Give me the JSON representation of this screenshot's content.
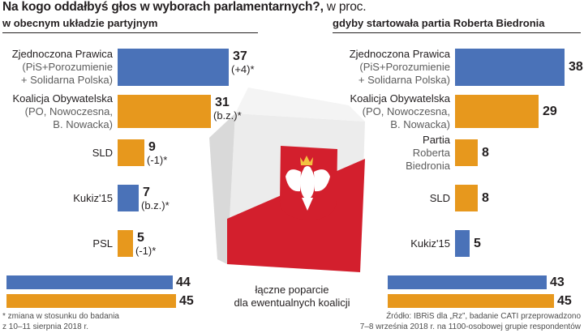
{
  "header": {
    "title": "Na kogo oddałbyś głos w wyborach parlamentarnych?,",
    "unit": "w proc."
  },
  "colors": {
    "blue": "#4a72b8",
    "orange": "#e7981d",
    "red": "#d31f2d",
    "text": "#231f20",
    "subtext": "#5c5c5c"
  },
  "chart_data": [
    {
      "type": "bar",
      "orientation": "horizontal",
      "title": "w obecnym układzie partyjnym",
      "unit": "proc.",
      "xlim": [
        0,
        40
      ],
      "items": [
        {
          "label": [
            "Zjednoczona Prawica",
            "(PiS+Porozumienie",
            "+ Solidarna Polska)"
          ],
          "value": 37,
          "change": "(+4)*",
          "color": "blue"
        },
        {
          "label": [
            "Koalicja Obywatelska",
            "(PO, Nowoczesna,",
            "B. Nowacka)"
          ],
          "value": 31,
          "change": "(b.z.)*",
          "color": "orange"
        },
        {
          "label": [
            "SLD"
          ],
          "value": 9,
          "change": "(-1)*",
          "color": "orange"
        },
        {
          "label": [
            "Kukiz'15"
          ],
          "value": 7,
          "change": "(b.z.)*",
          "color": "blue"
        },
        {
          "label": [
            "PSL"
          ],
          "value": 5,
          "change": "(-1)*",
          "color": "orange"
        }
      ],
      "coalition_totals": [
        {
          "value": 44,
          "color": "blue"
        },
        {
          "value": 45,
          "color": "orange"
        }
      ]
    },
    {
      "type": "bar",
      "orientation": "horizontal",
      "title": "gdyby startowała partia Roberta Biedronia",
      "unit": "proc.",
      "xlim": [
        0,
        40
      ],
      "items": [
        {
          "label": [
            "Zjednoczona Prawica",
            "(PiS+Porozumienie",
            "+ Solidarna Polska)"
          ],
          "value": 38,
          "color": "blue"
        },
        {
          "label": [
            "Koalicja Obywatelska",
            "(PO, Nowoczesna,",
            "B. Nowacka)"
          ],
          "value": 29,
          "color": "orange"
        },
        {
          "label": [
            "Partia",
            "Roberta",
            "Biedronia"
          ],
          "value": 8,
          "color": "orange"
        },
        {
          "label": [
            "SLD"
          ],
          "value": 8,
          "color": "orange"
        },
        {
          "label": [
            "Kukiz'15"
          ],
          "value": 5,
          "color": "blue"
        }
      ],
      "coalition_totals": [
        {
          "value": 43,
          "color": "blue"
        },
        {
          "value": 45,
          "color": "orange"
        }
      ]
    }
  ],
  "center": {
    "caption": [
      "łączne poparcie",
      "dla ewentualnych koalicji"
    ]
  },
  "notes": {
    "footnote": [
      "* zmiana w stosunku do badania",
      "z 10–11 sierpnia 2018 r."
    ],
    "source": [
      "Źródło: IBRiS dla „Rz”, badanie CATI przeprowadzono",
      "7–8 września 2018 r. na 1100-osobowej grupie respondentów"
    ]
  }
}
